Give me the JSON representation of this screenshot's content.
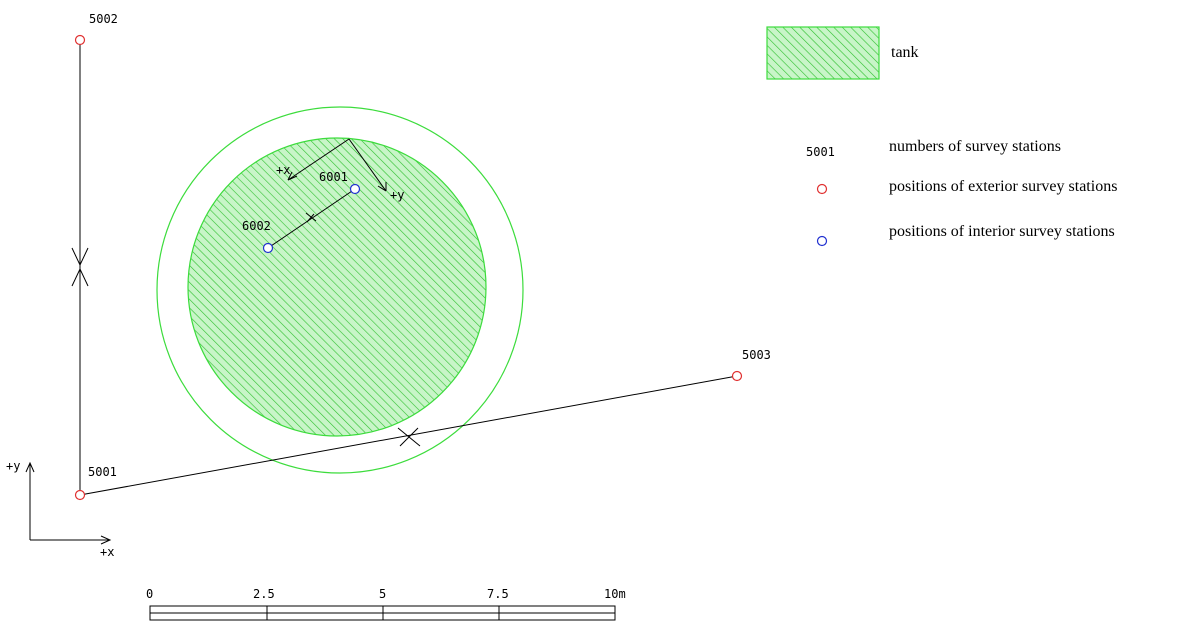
{
  "stations": {
    "s5001": "5001",
    "s5002": "5002",
    "s5003": "5003",
    "s6001": "6001",
    "s6002": "6002"
  },
  "axes": {
    "global_x": "+x",
    "global_y": "+y",
    "local_x": "+x",
    "local_y": "+y"
  },
  "legend": {
    "tank": "tank",
    "number_sample": "5001",
    "numbers": "numbers of survey stations",
    "exterior": "positions of exterior survey stations",
    "interior": "positions of interior survey stations"
  },
  "scale_bar": {
    "ticks": [
      "0",
      "2.5",
      "5",
      "7.5",
      "10m"
    ]
  },
  "colors": {
    "exterior_station": "#e03030",
    "interior_station": "#2030d0",
    "tank_fill": "#b8f0b8",
    "tank_hatch": "#30c030",
    "ring": "#3cdc3c"
  }
}
